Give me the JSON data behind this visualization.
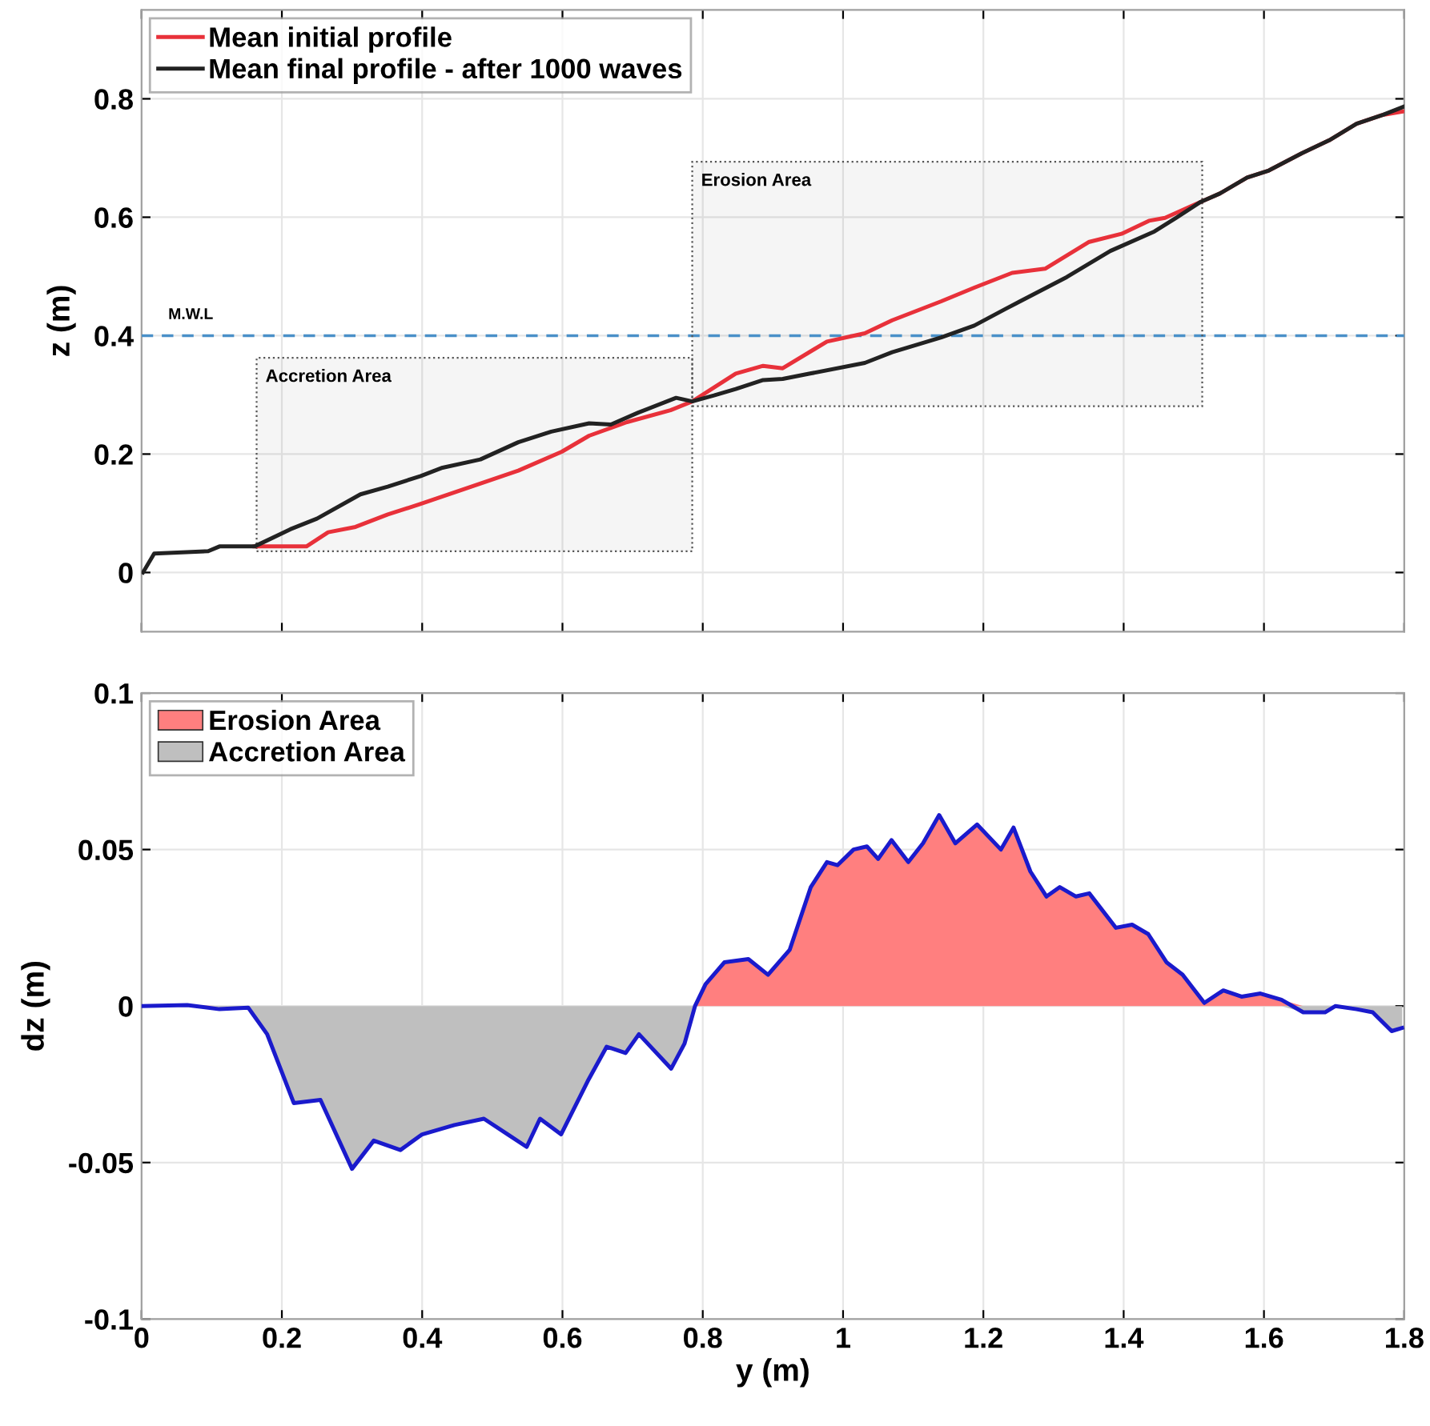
{
  "chart_data": [
    {
      "type": "line",
      "ylabel": "z (m)",
      "xlim": [
        0,
        1.8
      ],
      "ylim": [
        -0.1,
        0.95
      ],
      "xticks": [
        0,
        0.2,
        0.4,
        0.6,
        0.8,
        1,
        1.2,
        1.4,
        1.6,
        1.8
      ],
      "yticks": [
        0,
        0.2,
        0.4,
        0.6,
        0.8
      ],
      "tick_labels": "y",
      "grid": true,
      "legend": "top left",
      "series": [
        {
          "name": "Mean initial profile",
          "color": "#e8313a",
          "x": [
            0.161,
            0.235,
            0.266,
            0.305,
            0.351,
            0.398,
            0.46,
            0.537,
            0.599,
            0.638,
            0.692,
            0.754,
            0.785,
            0.847,
            0.886,
            0.914,
            0.977,
            1.031,
            1.07,
            1.14,
            1.187,
            1.241,
            1.288,
            1.35,
            1.397,
            1.436,
            1.459,
            1.51,
            1.537,
            1.576,
            1.607,
            1.654,
            1.693,
            1.732,
            1.77,
            1.8
          ],
          "values": [
            0.044,
            0.044,
            0.068,
            0.077,
            0.098,
            0.116,
            0.141,
            0.172,
            0.204,
            0.231,
            0.254,
            0.274,
            0.289,
            0.336,
            0.349,
            0.345,
            0.39,
            0.404,
            0.426,
            0.458,
            0.481,
            0.506,
            0.513,
            0.558,
            0.572,
            0.594,
            0.599,
            0.626,
            0.64,
            0.667,
            0.679,
            0.708,
            0.73,
            0.758,
            0.773,
            0.779
          ]
        },
        {
          "name": "Mean final profile - after 1000 waves",
          "color": "#222222",
          "x": [
            0.002,
            0.018,
            0.095,
            0.111,
            0.161,
            0.212,
            0.25,
            0.312,
            0.351,
            0.398,
            0.429,
            0.483,
            0.537,
            0.584,
            0.638,
            0.669,
            0.708,
            0.762,
            0.785,
            0.816,
            0.847,
            0.886,
            0.914,
            0.953,
            1.031,
            1.07,
            1.14,
            1.187,
            1.233,
            1.319,
            1.381,
            1.444,
            1.475,
            1.51,
            1.537,
            1.576,
            1.607,
            1.654,
            1.693,
            1.732,
            1.77,
            1.8
          ],
          "values": [
            0.0,
            0.032,
            0.036,
            0.044,
            0.044,
            0.073,
            0.091,
            0.132,
            0.145,
            0.163,
            0.177,
            0.191,
            0.22,
            0.238,
            0.252,
            0.25,
            0.27,
            0.295,
            0.289,
            0.299,
            0.31,
            0.325,
            0.327,
            0.336,
            0.354,
            0.372,
            0.397,
            0.417,
            0.446,
            0.499,
            0.543,
            0.576,
            0.599,
            0.626,
            0.64,
            0.667,
            0.679,
            0.708,
            0.73,
            0.758,
            0.773,
            0.787
          ]
        }
      ],
      "ref_lines": [
        {
          "axis": "y",
          "value": 0.4,
          "label": "M.W.L",
          "color": "#4a90c8",
          "line_style": "dashed"
        }
      ],
      "bands": [
        {
          "axis": "x",
          "from": 0.164,
          "to": 0.785,
          "label": "Accretion Area",
          "color": "#555555"
        },
        {
          "axis": "x",
          "from": 0.785,
          "to": 1.512,
          "label": "Erosion Area",
          "color": "#555555"
        }
      ]
    },
    {
      "type": "area",
      "xlabel": "y (m)",
      "ylabel": "dz (m)",
      "xlim": [
        0,
        1.8
      ],
      "ylim": [
        -0.1,
        0.1
      ],
      "xticks": [
        0,
        0.2,
        0.4,
        0.6,
        0.8,
        1,
        1.2,
        1.4,
        1.6,
        1.8
      ],
      "yticks": [
        -0.1,
        -0.05,
        0,
        0.05,
        0.1
      ],
      "grid": true,
      "legend": "top left",
      "x": [
        0,
        0.065,
        0.111,
        0.152,
        0.179,
        0.217,
        0.255,
        0.3,
        0.331,
        0.369,
        0.4,
        0.446,
        0.488,
        0.522,
        0.549,
        0.568,
        0.598,
        0.636,
        0.663,
        0.69,
        0.709,
        0.755,
        0.774,
        0.789,
        0.804,
        0.831,
        0.865,
        0.893,
        0.924,
        0.954,
        0.977,
        0.992,
        1.015,
        1.034,
        1.05,
        1.069,
        1.093,
        1.114,
        1.137,
        1.16,
        1.191,
        1.225,
        1.243,
        1.267,
        1.29,
        1.309,
        1.332,
        1.351,
        1.389,
        1.412,
        1.435,
        1.461,
        1.484,
        1.515,
        1.542,
        1.568,
        1.595,
        1.625,
        1.656,
        1.687,
        1.702,
        1.732,
        1.755,
        1.782,
        1.797
      ],
      "series": [
        {
          "name": "Erosion Area",
          "color": "#ff7f7f",
          "values": [
            0,
            0.0003,
            0,
            0,
            0,
            0,
            0,
            0,
            0,
            0,
            0,
            0,
            0,
            0,
            0,
            0,
            0,
            0,
            0,
            0,
            0,
            0,
            0,
            0,
            0.007,
            0.014,
            0.015,
            0.01,
            0.018,
            0.038,
            0.046,
            0.045,
            0.05,
            0.051,
            0.047,
            0.053,
            0.046,
            0.052,
            0.061,
            0.052,
            0.058,
            0.05,
            0.057,
            0.043,
            0.035,
            0.038,
            0.035,
            0.036,
            0.025,
            0.026,
            0.023,
            0.014,
            0.01,
            0.001,
            0.005,
            0.003,
            0.004,
            0.002,
            0,
            0,
            0,
            0,
            0,
            0,
            0
          ]
        },
        {
          "name": "Accretion Area",
          "color": "#bfbfbf",
          "values": [
            0,
            0,
            -0.001,
            -0.0005,
            -0.009,
            -0.031,
            -0.03,
            -0.052,
            -0.043,
            -0.046,
            -0.041,
            -0.038,
            -0.036,
            -0.041,
            -0.045,
            -0.036,
            -0.041,
            -0.024,
            -0.013,
            -0.015,
            -0.009,
            -0.02,
            -0.012,
            0,
            0,
            0,
            0,
            0,
            0,
            0,
            0,
            0,
            0,
            0,
            0,
            0,
            0,
            0,
            0,
            0,
            0,
            0,
            0,
            0,
            0,
            0,
            0,
            0,
            0,
            0,
            0,
            0,
            0,
            0,
            0,
            0,
            0,
            0,
            -0.002,
            -0.002,
            0,
            -0.001,
            -0.002,
            -0.008,
            -0.007
          ]
        },
        {
          "type": "line",
          "color": "#1a1acc",
          "values": [
            0,
            0.0003,
            -0.001,
            -0.0005,
            -0.009,
            -0.031,
            -0.03,
            -0.052,
            -0.043,
            -0.046,
            -0.041,
            -0.038,
            -0.036,
            -0.041,
            -0.045,
            -0.036,
            -0.041,
            -0.024,
            -0.013,
            -0.015,
            -0.009,
            -0.02,
            -0.012,
            0,
            0.007,
            0.014,
            0.015,
            0.01,
            0.018,
            0.038,
            0.046,
            0.045,
            0.05,
            0.051,
            0.047,
            0.053,
            0.046,
            0.052,
            0.061,
            0.052,
            0.058,
            0.05,
            0.057,
            0.043,
            0.035,
            0.038,
            0.035,
            0.036,
            0.025,
            0.026,
            0.023,
            0.014,
            0.01,
            0.001,
            0.005,
            0.003,
            0.004,
            0.002,
            -0.002,
            -0.002,
            0,
            -0.001,
            -0.002,
            -0.008,
            -0.007
          ]
        }
      ]
    }
  ]
}
